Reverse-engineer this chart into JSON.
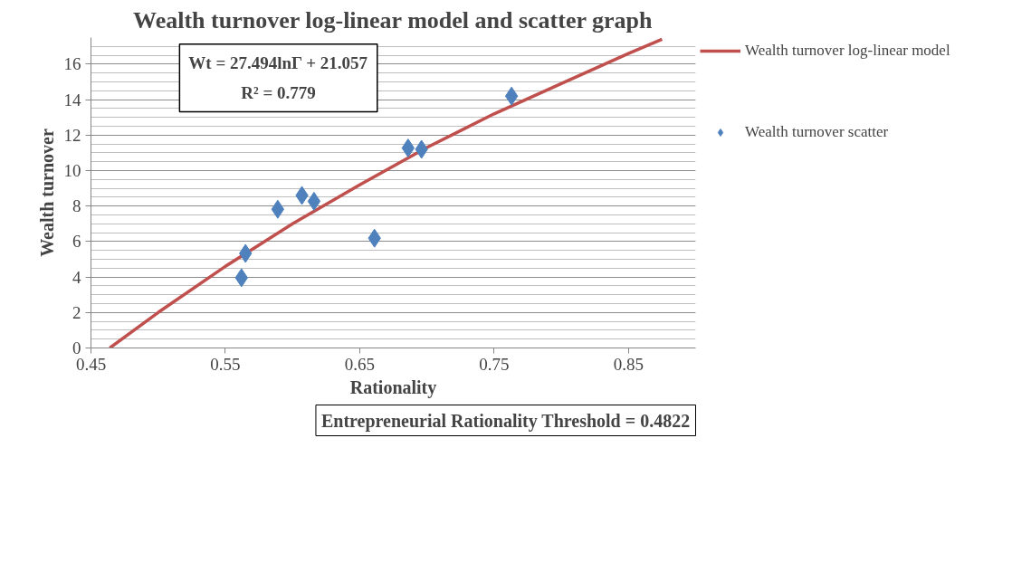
{
  "chart_data": {
    "type": "scatter",
    "title": "Wealth turnover log-linear model and scatter graph",
    "xlabel": "Rationality",
    "ylabel": "Wealth turnover",
    "xlim": [
      0.45,
      0.9
    ],
    "ylim": [
      0,
      17.5
    ],
    "xticks": [
      0.45,
      0.55,
      0.65,
      0.75,
      0.85
    ],
    "yticks": [
      0,
      2,
      4,
      6,
      8,
      10,
      12,
      14,
      16
    ],
    "grid": "y",
    "legend": "right",
    "marker": "diamond",
    "series": [
      {
        "name": "Wealth turnover log-linear model",
        "type": "line",
        "marker": "none",
        "color": "#c0504d",
        "x": [
          0.464,
          0.5,
          0.55,
          0.6,
          0.65,
          0.7,
          0.75,
          0.8,
          0.85,
          0.875
        ],
        "values": [
          0,
          2.0,
          4.6,
          7.0,
          9.2,
          11.3,
          13.2,
          14.9,
          16.6,
          17.4
        ]
      },
      {
        "name": "Wealth turnover scatter",
        "color": "#4f81bd",
        "x": [
          0.562,
          0.565,
          0.589,
          0.607,
          0.616,
          0.661,
          0.686,
          0.696,
          0.763
        ],
        "values": [
          3.96,
          5.33,
          7.82,
          8.6,
          8.27,
          6.19,
          11.27,
          11.2,
          14.2
        ]
      }
    ],
    "annotations": [
      "Wt = 27.494lnΓ + 21.057",
      "R² = 0.779",
      "Entrepreneurial Rationality Threshold = 0.4822"
    ]
  }
}
